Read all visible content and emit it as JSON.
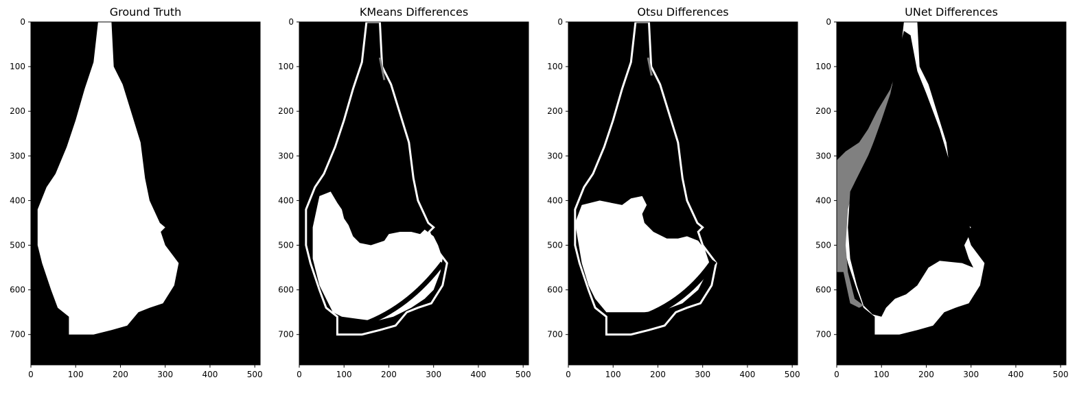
{
  "figure": {
    "background": "#ffffff"
  },
  "chart_data": [
    {
      "type": "heatmap",
      "title": "Ground Truth",
      "xlim": [
        0,
        512
      ],
      "ylim": [
        768,
        0
      ],
      "xticks": [
        0,
        100,
        200,
        300,
        400,
        500
      ],
      "yticks": [
        0,
        100,
        200,
        300,
        400,
        500,
        600,
        700
      ],
      "colors": {
        "background": "#000000",
        "foreground": "#ffffff",
        "partial": "#808080"
      },
      "legend": "none",
      "grid": false
    },
    {
      "type": "heatmap",
      "title": "KMeans Differences",
      "xlim": [
        0,
        512
      ],
      "ylim": [
        768,
        0
      ],
      "xticks": [
        0,
        100,
        200,
        300,
        400,
        500
      ],
      "yticks": [
        0,
        100,
        200,
        300,
        400,
        500,
        600,
        700
      ],
      "colors": {
        "background": "#000000",
        "foreground": "#ffffff",
        "partial": "#808080"
      },
      "legend": "none",
      "grid": false
    },
    {
      "type": "heatmap",
      "title": "Otsu Differences",
      "xlim": [
        0,
        512
      ],
      "ylim": [
        768,
        0
      ],
      "xticks": [
        0,
        100,
        200,
        300,
        400,
        500
      ],
      "yticks": [
        0,
        100,
        200,
        300,
        400,
        500,
        600,
        700
      ],
      "colors": {
        "background": "#000000",
        "foreground": "#ffffff",
        "partial": "#808080"
      },
      "legend": "none",
      "grid": false
    },
    {
      "type": "heatmap",
      "title": "UNet Differences",
      "xlim": [
        0,
        512
      ],
      "ylim": [
        768,
        0
      ],
      "xticks": [
        0,
        100,
        200,
        300,
        400,
        500
      ],
      "yticks": [
        0,
        100,
        200,
        300,
        400,
        500,
        600,
        700
      ],
      "colors": {
        "background": "#000000",
        "foreground": "#ffffff",
        "partial": "#808080"
      },
      "legend": "none",
      "grid": false
    }
  ]
}
